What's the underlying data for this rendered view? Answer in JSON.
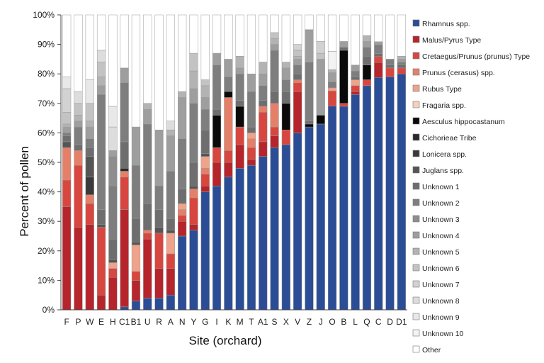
{
  "chart_data": {
    "type": "bar",
    "stacked": true,
    "ylabel": "Percent of pollen",
    "xlabel": "Site (orchard)",
    "ylim": [
      0,
      100
    ],
    "yticks": [
      "0%",
      "10%",
      "20%",
      "30%",
      "40%",
      "50%",
      "60%",
      "70%",
      "80%",
      "90%",
      "100%"
    ],
    "grid": false,
    "legend_position": "right",
    "categories": [
      "F",
      "P",
      "W",
      "E",
      "H",
      "C1",
      "B1",
      "U",
      "R",
      "A",
      "N",
      "Y",
      "G",
      "I",
      "K",
      "M",
      "T",
      "A1",
      "S",
      "X",
      "V",
      "Z",
      "J",
      "O",
      "B",
      "L",
      "Q",
      "C",
      "D",
      "D1"
    ],
    "series": [
      {
        "name": "Rhamnus spp.",
        "color": "#2b4d96",
        "values": [
          0,
          0,
          0,
          0,
          0,
          1,
          3,
          4,
          4,
          5,
          25,
          27,
          40,
          42,
          45,
          48,
          49,
          52,
          55,
          56,
          60,
          62,
          63,
          67,
          69,
          73,
          76,
          78,
          79,
          80
        ]
      },
      {
        "name": "Malus/Pyrus Type",
        "color": "#b5252b",
        "values": [
          35,
          28,
          29,
          5,
          11,
          33,
          7,
          20,
          10,
          9,
          5,
          2,
          2,
          8,
          5,
          8,
          2,
          5,
          4,
          0,
          14,
          0,
          0,
          0,
          0,
          1,
          0,
          5,
          0,
          0
        ]
      },
      {
        "name": "Cretaegus/Prunus (prunus) Type",
        "color": "#d8473f",
        "values": [
          9,
          21,
          7,
          23,
          3,
          11,
          3,
          2,
          12,
          5,
          2,
          9,
          4,
          5,
          4,
          6,
          4,
          10,
          3,
          5,
          3,
          0,
          0,
          5,
          1,
          2,
          2,
          2,
          3,
          2
        ]
      },
      {
        "name": "Prunus (cerasus) spp.",
        "color": "#e4806a",
        "values": [
          11,
          5,
          3,
          0,
          0,
          2,
          0,
          1,
          0,
          0,
          2,
          3,
          2,
          0,
          18,
          0,
          3,
          2,
          8,
          0,
          1,
          0,
          0,
          0,
          0,
          0,
          0,
          0,
          0,
          0
        ]
      },
      {
        "name": "Rubus Type",
        "color": "#eea38a",
        "values": [
          0,
          0,
          0,
          0,
          2,
          0,
          9,
          0,
          0,
          7,
          2,
          0,
          4,
          0,
          0,
          0,
          2,
          0,
          0,
          0,
          0,
          0,
          0,
          1,
          0,
          2,
          0,
          0,
          0,
          0
        ]
      },
      {
        "name": "Fragaria spp.",
        "color": "#f6cfbf",
        "values": [
          0,
          0,
          0,
          0,
          0,
          0,
          0,
          0,
          0,
          0,
          0,
          0,
          0,
          0,
          0,
          0,
          0,
          0,
          0,
          0,
          0,
          0,
          0,
          0,
          0,
          0,
          0,
          0,
          0,
          0
        ]
      },
      {
        "name": "Aesculus hippocastanum",
        "color": "#0a0a0a",
        "values": [
          0,
          0,
          0,
          0,
          0,
          0,
          0,
          0,
          0,
          0,
          0,
          0,
          0,
          11,
          2,
          7,
          0,
          0,
          0,
          9,
          0,
          1,
          3,
          0,
          18,
          0,
          5,
          0,
          0,
          0
        ]
      },
      {
        "name": "Cichorieae Tribe",
        "color": "#2a2a2a",
        "values": [
          0,
          0,
          0,
          0,
          0,
          1,
          0,
          0,
          0,
          0,
          0,
          0,
          0,
          0,
          0,
          0,
          0,
          0,
          0,
          0,
          0,
          0,
          0,
          0,
          0,
          0,
          0,
          0,
          0,
          0
        ]
      },
      {
        "name": "Lonicera spp.",
        "color": "#3a3a3a",
        "values": [
          0,
          0,
          6,
          0,
          0,
          0,
          0,
          0,
          0,
          0,
          0,
          0,
          0,
          0,
          0,
          0,
          0,
          0,
          0,
          0,
          0,
          0,
          0,
          0,
          0,
          0,
          0,
          0,
          0,
          0
        ]
      },
      {
        "name": "Juglans spp.",
        "color": "#555555",
        "values": [
          2,
          0,
          7,
          1,
          1,
          0,
          1,
          0,
          2,
          1,
          0,
          1,
          1,
          0,
          0,
          0,
          0,
          0,
          0,
          0,
          0,
          0,
          0,
          0,
          0,
          0,
          0,
          0,
          0,
          0
        ]
      },
      {
        "name": "Unknown 1",
        "color": "#6e6e6e",
        "values": [
          2,
          2,
          3,
          5,
          7,
          9,
          8,
          9,
          6,
          4,
          5,
          8,
          8,
          2,
          0,
          2,
          2,
          2,
          4,
          4,
          2,
          1,
          0,
          0,
          1,
          1,
          3,
          1,
          1,
          1
        ]
      },
      {
        "name": "Unknown 2",
        "color": "#7e7e7e",
        "values": [
          1,
          6,
          3,
          39,
          18,
          20,
          18,
          27,
          8,
          16,
          17,
          20,
          7,
          15,
          5,
          9,
          12,
          5,
          14,
          4,
          3,
          20,
          0,
          2,
          0,
          2,
          3,
          3,
          2,
          1
        ]
      },
      {
        "name": "Unknown 3",
        "color": "#8e8e8e",
        "values": [
          0,
          0,
          0,
          0,
          10,
          0,
          0,
          0,
          0,
          0,
          0,
          0,
          0,
          0,
          0,
          0,
          0,
          0,
          0,
          0,
          0,
          0,
          0,
          0,
          0,
          0,
          0,
          0,
          0,
          0
        ]
      },
      {
        "name": "Unknown 4",
        "color": "#9e9e9e",
        "values": [
          2,
          2,
          4,
          3,
          2,
          5,
          13,
          5,
          19,
          12,
          14,
          5,
          4,
          4,
          6,
          2,
          6,
          4,
          2,
          4,
          2,
          11,
          19,
          3,
          2,
          2,
          2,
          1,
          0,
          1
        ]
      },
      {
        "name": "Unknown 5",
        "color": "#b3b3b3",
        "values": [
          1,
          2,
          2,
          3,
          0,
          0,
          0,
          2,
          0,
          2,
          2,
          6,
          4,
          0,
          0,
          4,
          0,
          4,
          2,
          2,
          1,
          0,
          0,
          1,
          0,
          0,
          2,
          0,
          0,
          1
        ]
      },
      {
        "name": "Unknown 6",
        "color": "#c3c3c3",
        "values": [
          4,
          4,
          6,
          5,
          0,
          0,
          0,
          0,
          0,
          0,
          0,
          6,
          2,
          0,
          0,
          0,
          0,
          0,
          2,
          0,
          2,
          0,
          2,
          0,
          0,
          0,
          0,
          0,
          0,
          0
        ]
      },
      {
        "name": "Unknown 7",
        "color": "#d2d2d2",
        "values": [
          8,
          0,
          0,
          0,
          0,
          0,
          0,
          0,
          0,
          0,
          0,
          0,
          0,
          0,
          0,
          0,
          0,
          0,
          0,
          0,
          2,
          0,
          4,
          0,
          0,
          0,
          0,
          0,
          0,
          0
        ]
      },
      {
        "name": "Unknown 8",
        "color": "#dddddd",
        "values": [
          0,
          4,
          0,
          4,
          8,
          0,
          0,
          0,
          0,
          3,
          0,
          0,
          0,
          0,
          0,
          0,
          0,
          0,
          0,
          0,
          0,
          0,
          0,
          0,
          0,
          0,
          0,
          0,
          0,
          0
        ]
      },
      {
        "name": "Unknown 9",
        "color": "#e8e8e8",
        "values": [
          4,
          0,
          8,
          0,
          7,
          0,
          0,
          0,
          0,
          0,
          0,
          0,
          0,
          0,
          0,
          0,
          0,
          0,
          0,
          0,
          0,
          0,
          0,
          0,
          0,
          0,
          0,
          0,
          0,
          0
        ]
      },
      {
        "name": "Unknown 10",
        "color": "#f3f3f3",
        "values": [
          0,
          0,
          0,
          0,
          0,
          0,
          0,
          0,
          0,
          0,
          0,
          0,
          0,
          0,
          0,
          0,
          0,
          0,
          0,
          0,
          0,
          0,
          0,
          6,
          0,
          0,
          0,
          0,
          0,
          0
        ]
      },
      {
        "name": "Other",
        "color": "#ffffff",
        "values": [
          21,
          26,
          22,
          12,
          31,
          18,
          38,
          30,
          39,
          36,
          26,
          13,
          22,
          13,
          15,
          14,
          20,
          16,
          6,
          16,
          10,
          5,
          9,
          12,
          9,
          17,
          7,
          9,
          15,
          14
        ]
      }
    ]
  }
}
